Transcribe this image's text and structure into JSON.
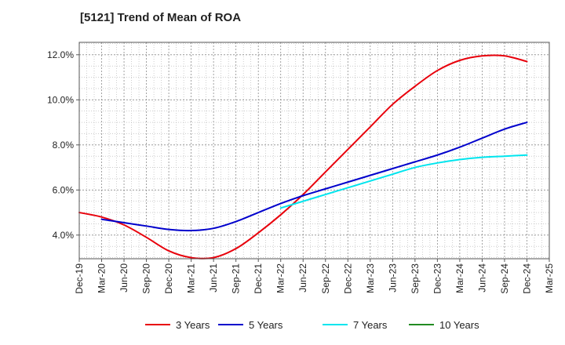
{
  "chart_data": {
    "type": "line",
    "title": "[5121]  Trend of Mean of ROA",
    "xlabel": "",
    "ylabel": "",
    "x_ticks": [
      "Dec-19",
      "Mar-20",
      "Jun-20",
      "Sep-20",
      "Dec-20",
      "Mar-21",
      "Jun-21",
      "Sep-21",
      "Dec-21",
      "Mar-22",
      "Jun-22",
      "Sep-22",
      "Dec-22",
      "Mar-23",
      "Jun-23",
      "Sep-23",
      "Dec-23",
      "Mar-24",
      "Jun-24",
      "Sep-24",
      "Dec-24",
      "Mar-25"
    ],
    "y_ticks": [
      {
        "value": 4.0,
        "label": "4.0%"
      },
      {
        "value": 6.0,
        "label": "6.0%"
      },
      {
        "value": 8.0,
        "label": "8.0%"
      },
      {
        "value": 10.0,
        "label": "10.0%"
      },
      {
        "value": 12.0,
        "label": "12.0%"
      }
    ],
    "ylim": [
      2.95,
      12.55
    ],
    "grid": true,
    "legend_position": "bottom",
    "series": [
      {
        "name": "3 Years",
        "color": "#e8000b",
        "start_index": 0,
        "values": [
          5.0,
          4.8,
          4.45,
          3.9,
          3.3,
          3.0,
          3.0,
          3.4,
          4.1,
          4.9,
          5.8,
          6.8,
          7.8,
          8.8,
          9.8,
          10.6,
          11.3,
          11.75,
          11.95,
          11.95,
          11.7
        ]
      },
      {
        "name": "5 Years",
        "color": "#0000cc",
        "start_index": 1,
        "values": [
          4.7,
          4.55,
          4.4,
          4.25,
          4.2,
          4.3,
          4.6,
          5.0,
          5.4,
          5.75,
          6.05,
          6.35,
          6.65,
          6.95,
          7.25,
          7.55,
          7.9,
          8.3,
          8.7,
          9.0
        ]
      },
      {
        "name": "7 Years",
        "color": "#00e5ee",
        "start_index": 9,
        "values": [
          5.2,
          5.5,
          5.8,
          6.1,
          6.4,
          6.7,
          7.0,
          7.2,
          7.35,
          7.45,
          7.5,
          7.55
        ]
      },
      {
        "name": "10 Years",
        "color": "#228b22",
        "start_index": 0,
        "values": []
      }
    ]
  }
}
